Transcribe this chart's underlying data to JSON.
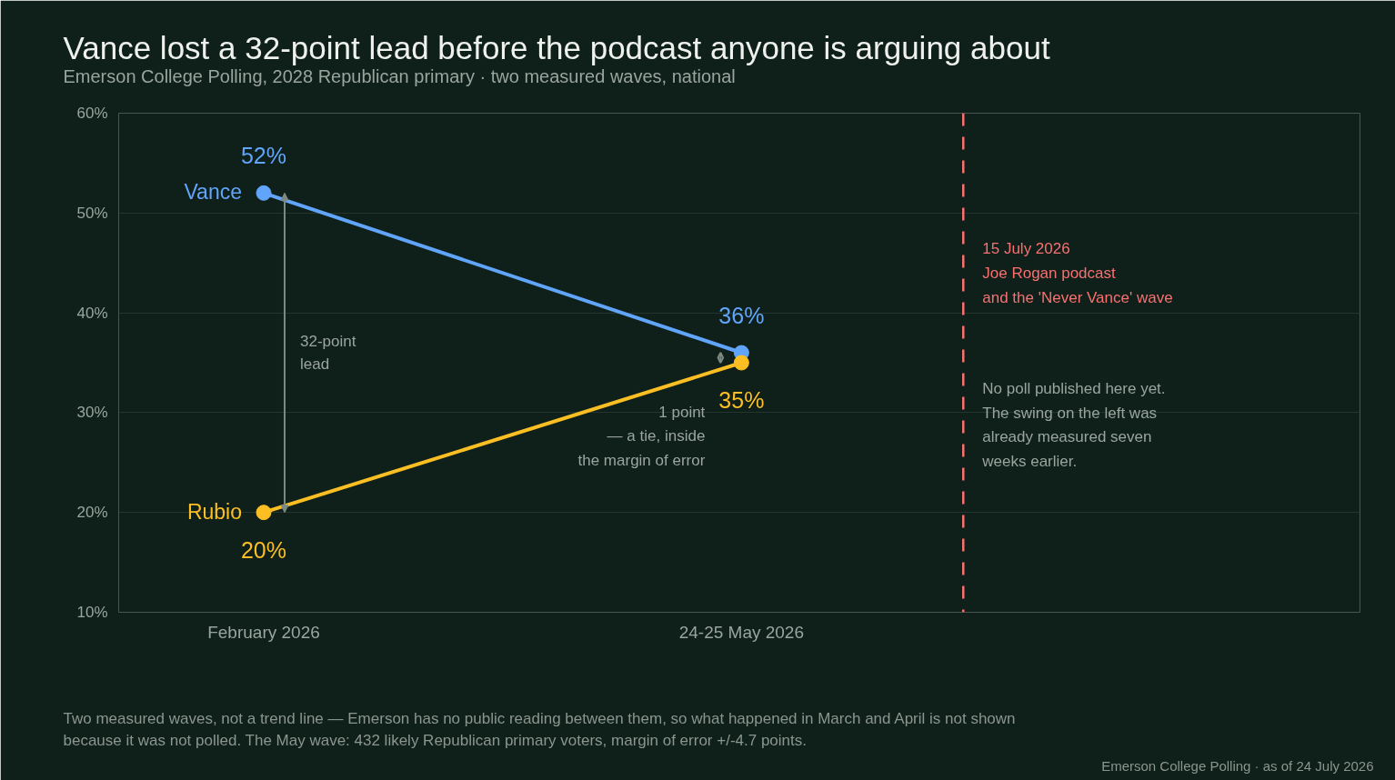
{
  "chart_data": {
    "type": "line",
    "title": "Vance lost a 32-point lead before the podcast anyone is arguing about",
    "subtitle": "Emerson College Polling, 2028 Republican primary · two measured waves, national",
    "x": [
      "2026-02",
      "2026-05-24"
    ],
    "xlim": [
      "2025-12-29",
      "2026-10-16"
    ],
    "xticks": [
      {
        "value": "2026-02",
        "label": "February 2026"
      },
      {
        "value": "2026-05-24",
        "label": "24-25 May 2026"
      }
    ],
    "ylim": [
      10,
      60
    ],
    "yticks": [
      {
        "value": 10,
        "label": "10%"
      },
      {
        "value": 20,
        "label": "20%"
      },
      {
        "value": 30,
        "label": "30%"
      },
      {
        "value": 40,
        "label": "40%"
      },
      {
        "value": 50,
        "label": "50%"
      },
      {
        "value": 60,
        "label": "60%"
      }
    ],
    "series": [
      {
        "name": "Vance",
        "color": "#60a5fa",
        "values": [
          52,
          36
        ],
        "value_labels": [
          "52%",
          "36%"
        ]
      },
      {
        "name": "Rubio",
        "color": "#fbbf24",
        "values": [
          20,
          35
        ],
        "value_labels": [
          "20%",
          "35%"
        ]
      }
    ],
    "ref_lines": [
      {
        "axis": "x",
        "value": "2026-07-15",
        "label": "15 July 2026\nJoe Rogan podcast\nand the 'Never Vance' wave",
        "color": "#f87171",
        "line_style": "dashed"
      }
    ],
    "annotations": [
      "32-point\nlead",
      "1 point\n— a tie, inside\nthe margin of error",
      "No poll published here yet.\nThe swing on the left was\nalready measured seven\nweeks earlier.",
      "Two measured waves, not a trend line — Emerson has no public reading between them, so what happened in March and April is not shown\nbecause it was not polled. The May wave: 432 likely Republican primary voters, margin of error +/-4.7 points.",
      "Emerson College Polling · as of 24 July 2026"
    ],
    "grid": "y",
    "marker": "circle",
    "line_style": "solid"
  }
}
